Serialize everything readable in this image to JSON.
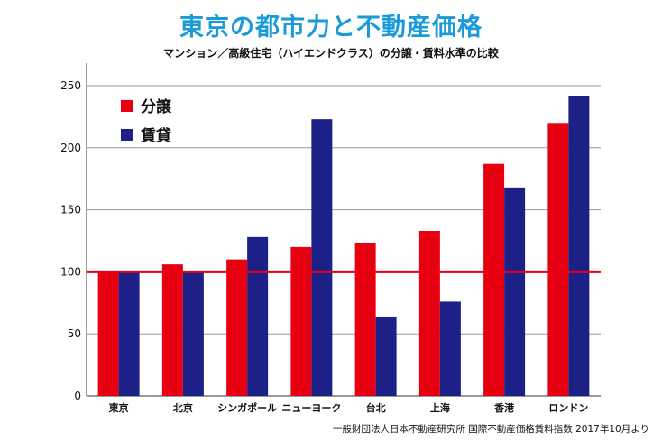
{
  "chart_data": {
    "type": "bar",
    "title": "東京の都市力と不動産価格",
    "subtitle": "マンション／高級住宅（ハイエンドクラス）の分譲・賃料水準の比較",
    "source": "一般財団法人日本不動産研究所 国際不動産価格賃料指数 2017年10月より",
    "categories": [
      "東京",
      "北京",
      "シンガポール",
      "ニューヨーク",
      "台北",
      "上海",
      "香港",
      "ロンドン"
    ],
    "series": [
      {
        "name": "分譲",
        "color": "#e60012",
        "values": [
          100,
          106,
          110,
          120,
          123,
          133,
          187,
          220
        ]
      },
      {
        "name": "賃貸",
        "color": "#1d2087",
        "values": [
          100,
          100,
          128,
          223,
          64,
          76,
          168,
          242
        ]
      }
    ],
    "ylim": [
      0,
      250
    ],
    "yticks": [
      0,
      50,
      100,
      150,
      200,
      250
    ],
    "reference_line": {
      "value": 100,
      "color": "#e60012"
    },
    "grid": true,
    "legend_position": "top-left"
  }
}
